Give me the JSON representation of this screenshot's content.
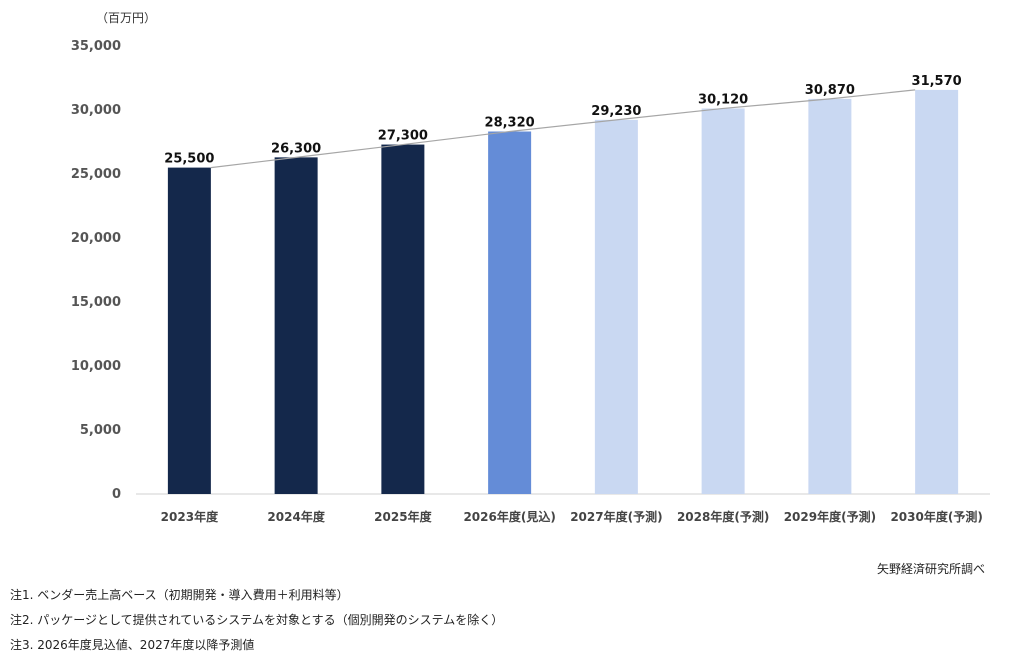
{
  "unit_label": "（百万円）",
  "source": "矢野経済研究所調べ",
  "notes": [
    "注1. ベンダー売上高ベース（初期開発・導入費用＋利用料等）",
    "注2. パッケージとして提供されているシステムを対象とする（個別開発のシステムを除く）",
    "注3. 2026年度見込値、2027年度以降予測値"
  ],
  "colors": {
    "actual": "#14284b",
    "estimate": "#648cd7",
    "forecast": "#c9d8f2",
    "trend_line": "#a6a6a6",
    "axis": "#d0d0d0"
  },
  "chart_data": {
    "type": "bar",
    "categories": [
      "2023年度",
      "2024年度",
      "2025年度",
      "2026年度(見込)",
      "2027年度(予測)",
      "2028年度(予測)",
      "2029年度(予測)",
      "2030年度(予測)"
    ],
    "values": [
      25500,
      26300,
      27300,
      28320,
      29230,
      30120,
      30870,
      31570
    ],
    "value_labels": [
      "25,500",
      "26,300",
      "27,300",
      "28,320",
      "29,230",
      "30,120",
      "30,870",
      "31,570"
    ],
    "bar_kinds": [
      "actual",
      "actual",
      "actual",
      "estimate",
      "forecast",
      "forecast",
      "forecast",
      "forecast"
    ],
    "yticks": [
      0,
      5000,
      10000,
      15000,
      20000,
      25000,
      30000,
      35000
    ],
    "ytick_labels": [
      "0",
      "5,000",
      "10,000",
      "15,000",
      "20,000",
      "25,000",
      "30,000",
      "35,000"
    ],
    "ylim": [
      0,
      35000
    ],
    "trend_line": true,
    "grid": false,
    "title": "",
    "xlabel": "",
    "ylabel": ""
  }
}
